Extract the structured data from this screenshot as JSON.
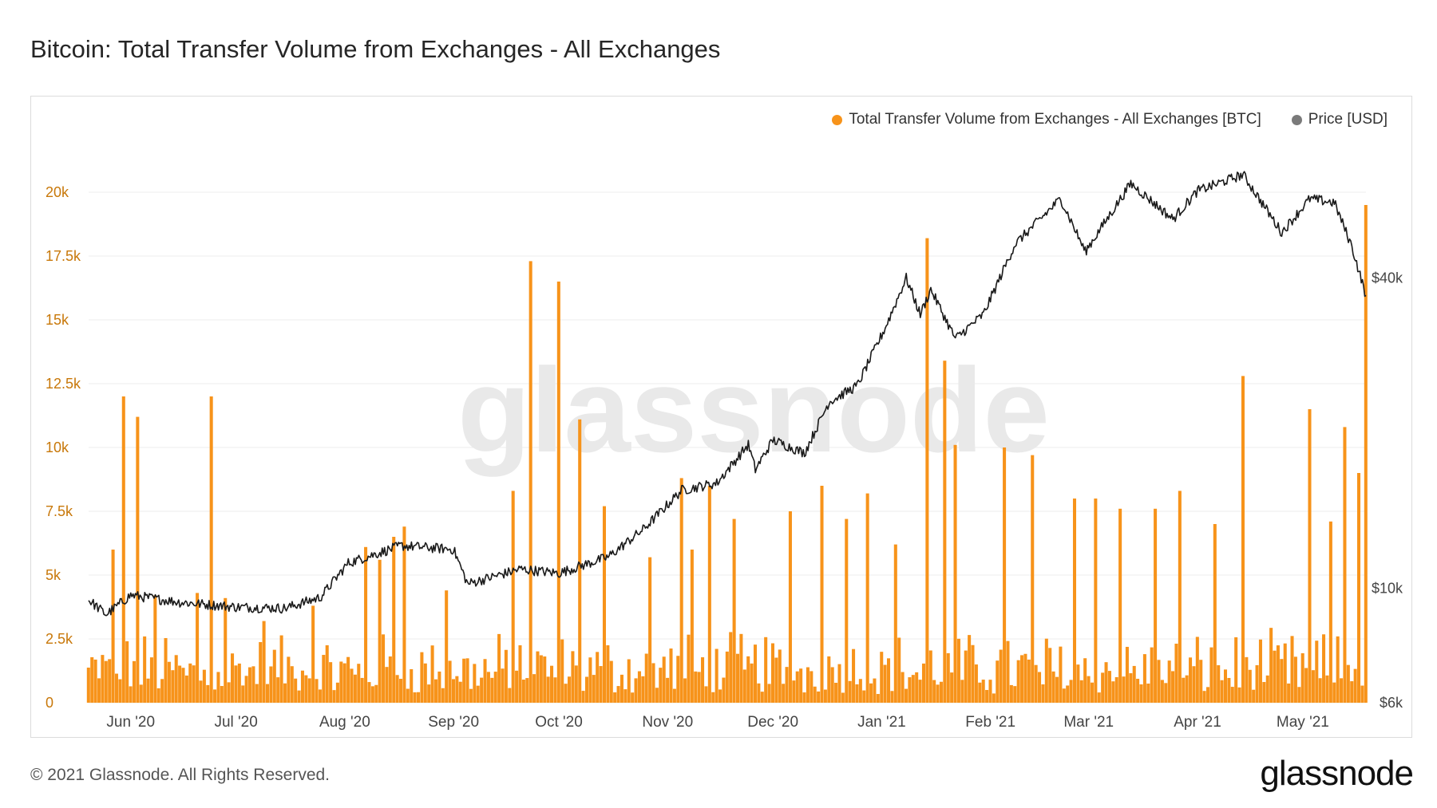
{
  "title": "Bitcoin: Total Transfer Volume from Exchanges - All Exchanges",
  "legend": [
    {
      "label": "Total Transfer Volume from Exchanges - All Exchanges [BTC]",
      "color": "#f7931a"
    },
    {
      "label": "Price [USD]",
      "color": "#7a7a7a"
    }
  ],
  "watermark": "glassnode",
  "footer": {
    "copyright": "© 2021 Glassnode. All Rights Reserved.",
    "logo": "glassnode"
  },
  "colors": {
    "bars": "#f7931a",
    "price_line": "#1a1a1a",
    "left_axis_text": "#c8780a",
    "right_axis_text": "#444444",
    "grid": "#eeeeee"
  },
  "chart_data": {
    "type": "bar",
    "title": "Bitcoin: Total Transfer Volume from Exchanges - All Exchanges",
    "x_range": [
      "2020-05-20",
      "2021-05-19"
    ],
    "x_ticks": [
      {
        "date": "2020-06-01",
        "label": "Jun '20"
      },
      {
        "date": "2020-07-01",
        "label": "Jul '20"
      },
      {
        "date": "2020-08-01",
        "label": "Aug '20"
      },
      {
        "date": "2020-09-01",
        "label": "Sep '20"
      },
      {
        "date": "2020-10-01",
        "label": "Oct '20"
      },
      {
        "date": "2020-11-01",
        "label": "Nov '20"
      },
      {
        "date": "2020-12-01",
        "label": "Dec '20"
      },
      {
        "date": "2021-01-01",
        "label": "Jan '21"
      },
      {
        "date": "2021-02-01",
        "label": "Feb '21"
      },
      {
        "date": "2021-03-01",
        "label": "Mar '21"
      },
      {
        "date": "2021-04-01",
        "label": "Apr '21"
      },
      {
        "date": "2021-05-01",
        "label": "May '21"
      }
    ],
    "y_left": {
      "min": 0,
      "max": 22500,
      "ticks": [
        {
          "value": 0,
          "label": "0"
        },
        {
          "value": 2500,
          "label": "2.5k"
        },
        {
          "value": 5000,
          "label": "5k"
        },
        {
          "value": 7500,
          "label": "7.5k"
        },
        {
          "value": 10000,
          "label": "10k"
        },
        {
          "value": 12500,
          "label": "12.5k"
        },
        {
          "value": 15000,
          "label": "15k"
        },
        {
          "value": 17500,
          "label": "17.5k"
        },
        {
          "value": 20000,
          "label": "20k"
        }
      ]
    },
    "y_right": {
      "scale": "log",
      "min": 6000,
      "ticks": [
        {
          "value": 6000,
          "label": "$6k"
        },
        {
          "value": 10000,
          "label": "$10k"
        },
        {
          "value": 40000,
          "label": "$40k"
        }
      ]
    },
    "series": [
      {
        "name": "Total Transfer Volume from Exchanges - All Exchanges [BTC]",
        "kind": "bar",
        "baseline_range": [
          300,
          3000
        ],
        "spikes": [
          {
            "date": "2020-05-27",
            "value": 6000
          },
          {
            "date": "2020-05-30",
            "value": 12000
          },
          {
            "date": "2020-06-03",
            "value": 11200
          },
          {
            "date": "2020-06-08",
            "value": 4200
          },
          {
            "date": "2020-06-20",
            "value": 4300
          },
          {
            "date": "2020-06-24",
            "value": 12000
          },
          {
            "date": "2020-06-28",
            "value": 4100
          },
          {
            "date": "2020-07-09",
            "value": 3200
          },
          {
            "date": "2020-07-23",
            "value": 3800
          },
          {
            "date": "2020-08-07",
            "value": 6100
          },
          {
            "date": "2020-08-11",
            "value": 5600
          },
          {
            "date": "2020-08-15",
            "value": 6500
          },
          {
            "date": "2020-08-18",
            "value": 6900
          },
          {
            "date": "2020-08-30",
            "value": 4400
          },
          {
            "date": "2020-09-18",
            "value": 8300
          },
          {
            "date": "2020-09-23",
            "value": 17300
          },
          {
            "date": "2020-10-01",
            "value": 16500
          },
          {
            "date": "2020-10-07",
            "value": 11100
          },
          {
            "date": "2020-10-14",
            "value": 7700
          },
          {
            "date": "2020-10-27",
            "value": 5700
          },
          {
            "date": "2020-11-05",
            "value": 8800
          },
          {
            "date": "2020-11-08",
            "value": 6000
          },
          {
            "date": "2020-11-13",
            "value": 8500
          },
          {
            "date": "2020-11-20",
            "value": 7200
          },
          {
            "date": "2020-12-06",
            "value": 7500
          },
          {
            "date": "2020-12-15",
            "value": 8500
          },
          {
            "date": "2020-12-22",
            "value": 7200
          },
          {
            "date": "2020-12-28",
            "value": 8200
          },
          {
            "date": "2021-01-05",
            "value": 6200
          },
          {
            "date": "2021-01-14",
            "value": 18200
          },
          {
            "date": "2021-01-19",
            "value": 13400
          },
          {
            "date": "2021-01-22",
            "value": 10100
          },
          {
            "date": "2021-02-05",
            "value": 10000
          },
          {
            "date": "2021-02-13",
            "value": 9700
          },
          {
            "date": "2021-02-25",
            "value": 8000
          },
          {
            "date": "2021-03-03",
            "value": 8000
          },
          {
            "date": "2021-03-10",
            "value": 7600
          },
          {
            "date": "2021-03-20",
            "value": 7600
          },
          {
            "date": "2021-03-27",
            "value": 8300
          },
          {
            "date": "2021-04-06",
            "value": 7000
          },
          {
            "date": "2021-04-14",
            "value": 12800
          },
          {
            "date": "2021-05-03",
            "value": 11500
          },
          {
            "date": "2021-05-09",
            "value": 7100
          },
          {
            "date": "2021-05-13",
            "value": 10800
          },
          {
            "date": "2021-05-17",
            "value": 9000
          },
          {
            "date": "2021-05-19",
            "value": 19500
          }
        ]
      },
      {
        "name": "Price [USD]",
        "kind": "line",
        "axis": "right",
        "points": [
          {
            "date": "2020-05-20",
            "value": 9500
          },
          {
            "date": "2020-05-25",
            "value": 8900
          },
          {
            "date": "2020-06-01",
            "value": 9700
          },
          {
            "date": "2020-06-15",
            "value": 9400
          },
          {
            "date": "2020-07-01",
            "value": 9200
          },
          {
            "date": "2020-07-15",
            "value": 9150
          },
          {
            "date": "2020-07-25",
            "value": 9600
          },
          {
            "date": "2020-08-02",
            "value": 11200
          },
          {
            "date": "2020-08-17",
            "value": 12100
          },
          {
            "date": "2020-09-01",
            "value": 11900
          },
          {
            "date": "2020-09-05",
            "value": 10200
          },
          {
            "date": "2020-09-20",
            "value": 10900
          },
          {
            "date": "2020-10-01",
            "value": 10700
          },
          {
            "date": "2020-10-15",
            "value": 11500
          },
          {
            "date": "2020-10-25",
            "value": 13000
          },
          {
            "date": "2020-11-05",
            "value": 15500
          },
          {
            "date": "2020-11-15",
            "value": 16000
          },
          {
            "date": "2020-11-24",
            "value": 19000
          },
          {
            "date": "2020-11-26",
            "value": 17000
          },
          {
            "date": "2020-12-01",
            "value": 19400
          },
          {
            "date": "2020-12-10",
            "value": 18300
          },
          {
            "date": "2020-12-17",
            "value": 23000
          },
          {
            "date": "2020-12-25",
            "value": 24700
          },
          {
            "date": "2021-01-02",
            "value": 32000
          },
          {
            "date": "2021-01-08",
            "value": 40000
          },
          {
            "date": "2021-01-12",
            "value": 34000
          },
          {
            "date": "2021-01-15",
            "value": 38000
          },
          {
            "date": "2021-01-22",
            "value": 30500
          },
          {
            "date": "2021-01-30",
            "value": 34000
          },
          {
            "date": "2021-02-08",
            "value": 46500
          },
          {
            "date": "2021-02-21",
            "value": 57000
          },
          {
            "date": "2021-02-28",
            "value": 45000
          },
          {
            "date": "2021-03-13",
            "value": 61000
          },
          {
            "date": "2021-03-25",
            "value": 52000
          },
          {
            "date": "2021-04-01",
            "value": 59000
          },
          {
            "date": "2021-04-14",
            "value": 63500
          },
          {
            "date": "2021-04-25",
            "value": 49000
          },
          {
            "date": "2021-05-03",
            "value": 57000
          },
          {
            "date": "2021-05-10",
            "value": 56000
          },
          {
            "date": "2021-05-15",
            "value": 46000
          },
          {
            "date": "2021-05-19",
            "value": 37000
          }
        ]
      }
    ]
  }
}
